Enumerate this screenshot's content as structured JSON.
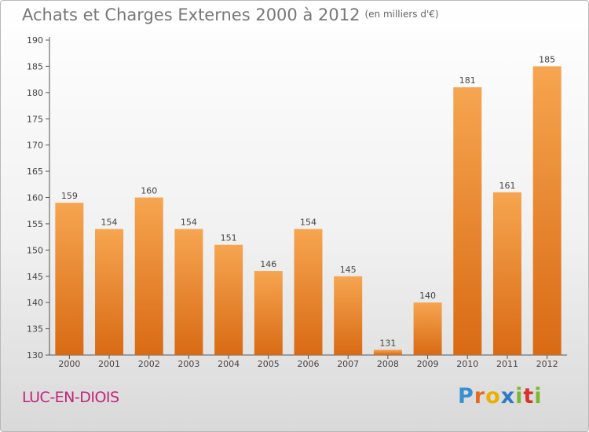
{
  "header": {
    "title": "Achats et Charges Externes 2000 à 2012",
    "subtitle": "(en milliers d'€)"
  },
  "footer": {
    "commune": "LUC-EN-DIOIS",
    "logo": [
      "P",
      "r",
      "o",
      "x",
      "i",
      "t",
      "i"
    ]
  },
  "colors": {
    "bar_top": "#f6a550",
    "bar_bottom": "#d96a14",
    "axis": "#555555",
    "tick_text": "#444444",
    "commune": "#c0257a"
  },
  "chart_data": {
    "type": "bar",
    "categories": [
      "2000",
      "2001",
      "2002",
      "2003",
      "2004",
      "2005",
      "2006",
      "2007",
      "2008",
      "2009",
      "2010",
      "2011",
      "2012"
    ],
    "values": [
      159,
      154,
      160,
      154,
      151,
      146,
      154,
      145,
      131,
      140,
      181,
      161,
      185
    ],
    "ylim": [
      130,
      190
    ],
    "yticks": [
      130,
      135,
      140,
      145,
      150,
      155,
      160,
      165,
      170,
      175,
      180,
      185,
      190
    ],
    "data_labels": true,
    "grid": false,
    "legend": "none"
  }
}
